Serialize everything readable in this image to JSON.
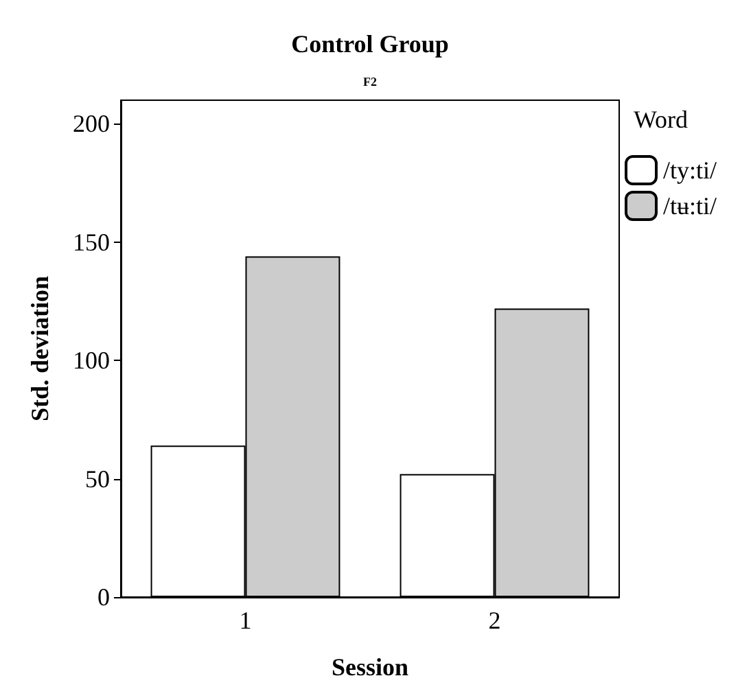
{
  "chart_data": {
    "type": "bar",
    "title": "Control Group",
    "subtitle": "F2",
    "xlabel": "Session",
    "ylabel": "Std. deviation",
    "legend_title": "Word",
    "categories": [
      "1",
      "2"
    ],
    "series": [
      {
        "name": "/ty:ti/",
        "color": "#ffffff",
        "values": [
          64,
          52
        ]
      },
      {
        "name": "/tʉ:ti/",
        "color": "#cccccc",
        "values": [
          144,
          122
        ]
      }
    ],
    "ylim": [
      0,
      210
    ],
    "yticks": [
      0,
      50,
      100,
      150,
      200
    ],
    "grid": false,
    "legend": "top right"
  }
}
